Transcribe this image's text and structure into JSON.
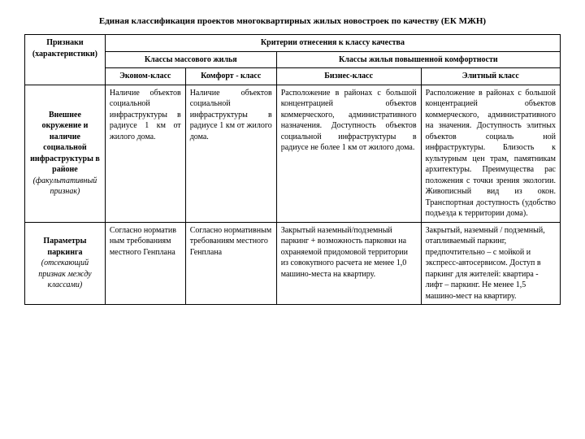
{
  "title": "Единая классификация проектов многоквартирных жилых новостроек по качеству (ЕК МЖН)",
  "headers": {
    "col1": "Признаки (характеристики)",
    "criteria": "Критерии отнесения к классу качества",
    "mass": "Классы массового жилья",
    "premium": "Классы жилья повышенной комфортности",
    "econom": "Эконом-класс",
    "comfort": "Комфорт - класс",
    "business": "Бизнес-класс",
    "elite": "Элитный класс"
  },
  "rows": [
    {
      "label_main": "Внешнее окружение и наличие социальной инфраструктуры в районе",
      "label_sub": "(факультативный признак)",
      "econom": "Наличие объектов социальной инфраструктуры в радиусе 1 км от жилого дома.",
      "comfort": "Наличие объектов социальной инфраструктуры в радиусе 1 км от жилого дома.",
      "business": "Расположение в районах с большой концентрацией объектов коммерческого, административного назначения. Доступность объектов социальной инфраструктуры в радиусе не более 1 км от жилого дома.",
      "elite": "Расположение в районах с большой концентрацией объектов коммерческого, административного на значения. Доступность элитных объектов социаль ной инфраструктуры. Близость к культурным цен трам, памятникам архитектуры. Преимущества рас положения с точки зрения экологии. Живописный вид из окон. Транспортная доступность (удобство подъезда к территории дома)."
    },
    {
      "label_main": "Параметры паркинга",
      "label_sub": "(отсекающий признак между классами)",
      "econom": "Согласно норматив ным требованиям местного Генплана",
      "comfort": "Согласно нормативным требованиям местного Генплана",
      "business": "Закрытый наземный/подземный паркинг + возможность парковки на охраняемой придомовой территории из совокупного расчета не менее 1,0 машино-места на квартиру.",
      "elite": "Закрытый, наземный / подземный, отапливаемый паркинг, предпочтительно – с мойкой и экспресс-автосервисом. Доступ в паркинг для жителей: квартира - лифт – паркинг. Не менее 1,5 машино-мест на квартиру."
    }
  ],
  "style": {
    "background": "#ffffff",
    "text_color": "#000000",
    "border_color": "#000000",
    "font_family": "Times New Roman",
    "title_fontsize": 11,
    "cell_fontsize": 10
  }
}
